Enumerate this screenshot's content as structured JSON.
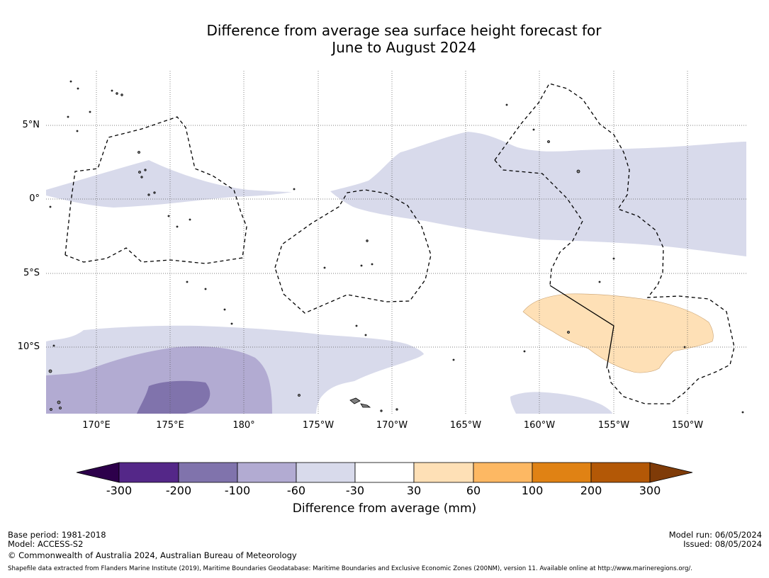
{
  "title": {
    "line1": "Difference from average sea surface height forecast for",
    "line2": "June to August 2024"
  },
  "map": {
    "lat_labels": [
      "5°N",
      "0°",
      "5°S",
      "10°S"
    ],
    "lon_labels": [
      "170°E",
      "175°E",
      "180°",
      "175°W",
      "170°W",
      "165°W",
      "160°W",
      "155°W",
      "150°W"
    ],
    "colors": {
      "land": "#808080",
      "outline": "#000000",
      "grid": "#555555"
    }
  },
  "colorbar": {
    "ticks": [
      "-300",
      "-200",
      "-100",
      "-60",
      "-30",
      "30",
      "60",
      "100",
      "200",
      "300"
    ],
    "colors": [
      "#2d004b",
      "#542788",
      "#8073ac",
      "#b2abd2",
      "#d8daeb",
      "#ffffff",
      "#fee0b6",
      "#fdb863",
      "#e08214",
      "#b35806",
      "#7f3b08"
    ],
    "label": "Difference from average (mm)"
  },
  "footer": {
    "base_period": "Base period: 1981-2018",
    "model": "Model: ACCESS-S2",
    "copyright": "© Commonwealth of Australia 2024, Australian Bureau of Meteorology",
    "model_run": "Model run: 06/05/2024",
    "issued": "Issued: 08/05/2024",
    "shapefile_note": "Shapefile data extracted from Flanders Marine Institute (2019), Maritime Boundaries Geodatabase: Maritime Boundaries and Exclusive Economic Zones (200NM), version 11. Available online at http://www.marineregions.org/."
  }
}
